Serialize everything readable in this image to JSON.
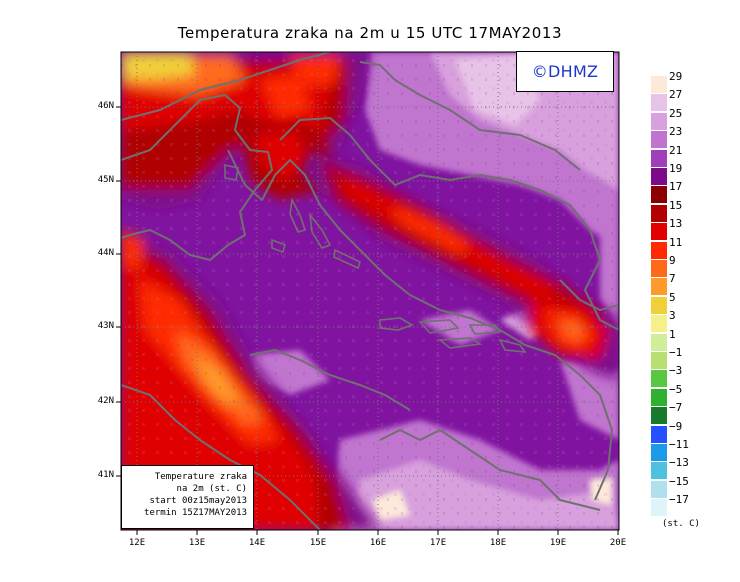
{
  "title": "Temperatura zraka na 2m u 15 UTC 17MAY2013",
  "copyright": "©DHMZ",
  "info_box": {
    "line1": "Temperature zraka",
    "line2": "na 2m (st. C)",
    "line3": "start 00z15may2013",
    "line4": "termin 15Z17MAY2013"
  },
  "lat_labels": [
    "46N",
    "45N",
    "44N",
    "43N",
    "42N",
    "41N"
  ],
  "lat_values": [
    46,
    45,
    44,
    43,
    42,
    41
  ],
  "lon_labels": [
    "12E",
    "13E",
    "14E",
    "15E",
    "16E",
    "17E",
    "18E",
    "19E",
    "20E"
  ],
  "lon_values": [
    12,
    13,
    14,
    15,
    16,
    17,
    18,
    19,
    20
  ],
  "legend": {
    "unit": "(st. C)",
    "levels": [
      "29",
      "27",
      "25",
      "23",
      "21",
      "19",
      "17",
      "15",
      "13",
      "11",
      "9",
      "7",
      "5",
      "3",
      "1",
      "−1",
      "−3",
      "−5",
      "−7",
      "−9",
      "−11",
      "−13",
      "−15",
      "−17"
    ],
    "colors": [
      "#fde9d9",
      "#e8c3e8",
      "#d8a0dc",
      "#c074cf",
      "#a040b8",
      "#7e0a8a",
      "#8a0000",
      "#b00000",
      "#e00000",
      "#ff2a00",
      "#ff6a1a",
      "#ff9a2a",
      "#f0d038",
      "#f6f08a",
      "#d0ee9a",
      "#b8e070",
      "#58c840",
      "#30b030",
      "#157a2a",
      "#2450ff",
      "#1c9ae8",
      "#50c0e0",
      "#b0e0ee",
      "#ddf4f8"
    ]
  }
}
